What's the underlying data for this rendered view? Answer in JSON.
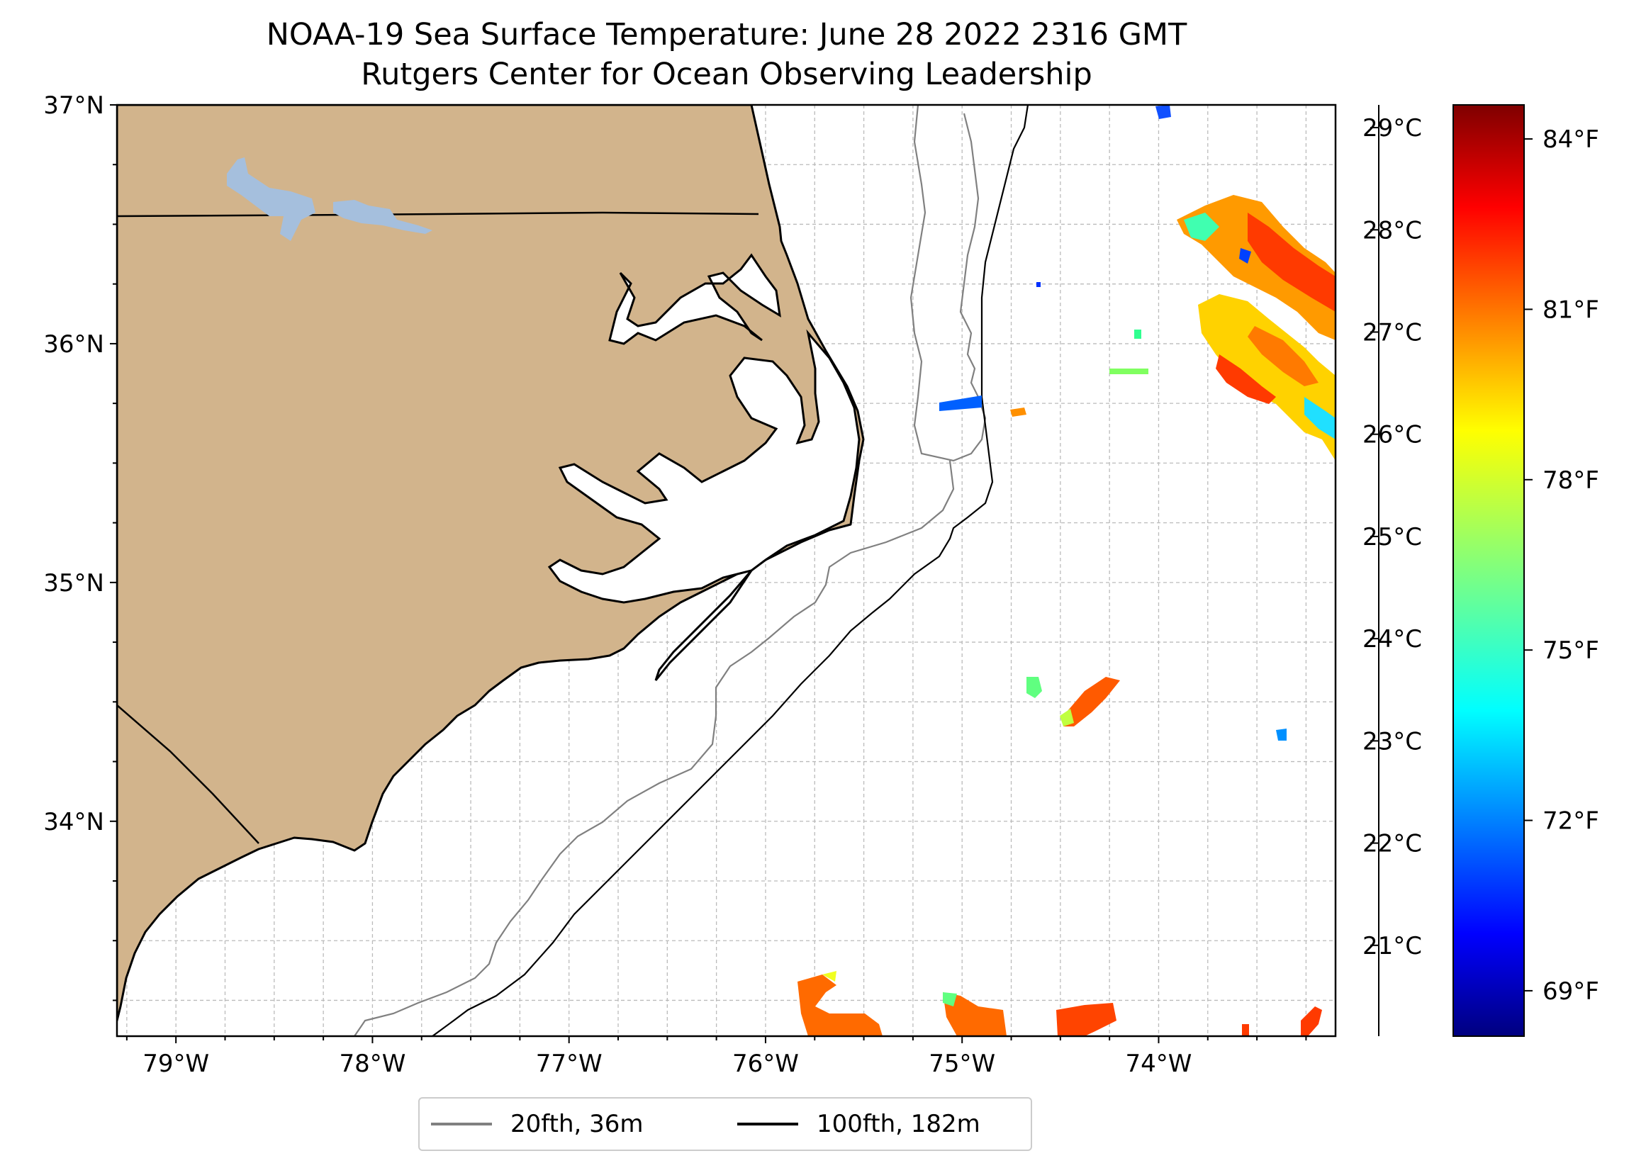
{
  "title": {
    "line1": "NOAA-19 Sea Surface Temperature: June 28 2022 2316 GMT",
    "line2": "Rutgers Center for Ocean Observing Leadership"
  },
  "map": {
    "lon_range": [
      -79.3,
      -73.1
    ],
    "lat_range": [
      33.1,
      37.0
    ],
    "lon_ticks": [
      -79,
      -78,
      -77,
      -76,
      -75,
      -74
    ],
    "lon_tick_labels": [
      "79°W",
      "78°W",
      "77°W",
      "76°W",
      "75°W",
      "74°W"
    ],
    "lat_ticks": [
      34,
      35,
      36,
      37
    ],
    "lat_tick_labels": [
      "34°N",
      "35°N",
      "36°N",
      "37°N"
    ],
    "gridlines": true,
    "colors": {
      "land": "#d2b48c",
      "water_body": "#a5bfdd",
      "isobath_20fth": "#808080",
      "isobath_100fth": "#000000"
    }
  },
  "legend": {
    "placement": "bottom-center",
    "items": [
      {
        "label": "20fth, 36m",
        "color": "#808080"
      },
      {
        "label": "100fth, 182m",
        "color": "#000000"
      }
    ]
  },
  "colorbar": {
    "colormap": "jet",
    "celsius_labels": [
      "21°C",
      "22°C",
      "23°C",
      "24°C",
      "25°C",
      "26°C",
      "27°C",
      "28°C",
      "29°C"
    ],
    "fahrenheit_labels": [
      "69°F",
      "72°F",
      "75°F",
      "78°F",
      "81°F",
      "84°F"
    ],
    "range_f": [
      68.2,
      84.6
    ]
  },
  "sst_patches": [
    {
      "name": "ne-warm-patch-1",
      "color": "#ff8000"
    },
    {
      "name": "ne-warm-patch-2",
      "color": "#ff5000"
    },
    {
      "name": "east-small-patch",
      "color": "#ff3000"
    },
    {
      "name": "south-patch-1",
      "color": "#ff5a00"
    },
    {
      "name": "south-patch-2",
      "color": "#ff4400"
    }
  ]
}
